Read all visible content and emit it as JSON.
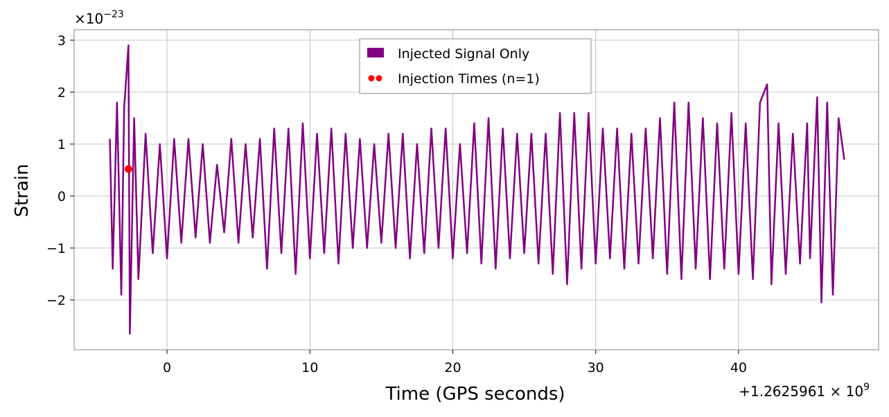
{
  "chart_data": {
    "type": "line",
    "x_label": "Time (GPS seconds)",
    "y_label": "Strain",
    "x_offset": {
      "base": "+1.2625961 × 10",
      "exponent": "9"
    },
    "y_offset": {
      "base": "×10",
      "exponent": "−23"
    },
    "xlim": [
      -6.5,
      49.8
    ],
    "ylim": [
      -2.96,
      3.2
    ],
    "xticks": [
      0,
      10,
      20,
      30,
      40
    ],
    "yticks": [
      {
        "value": -2,
        "label": "−2"
      },
      {
        "value": -1,
        "label": "−1"
      },
      0,
      1,
      2,
      3
    ],
    "grid": true,
    "legend": "upper center",
    "series": [
      {
        "name": "Injected Signal Only",
        "type": "line",
        "color": "#800080",
        "x": [
          -4.0,
          -3.8,
          -3.5,
          -3.2,
          -3.0,
          -2.7,
          -2.6,
          -2.3,
          -2.0,
          -1.5,
          -1.0,
          -0.5,
          0.0,
          0.5,
          1.0,
          1.5,
          2.0,
          2.5,
          3.0,
          3.5,
          4.0,
          4.5,
          5.0,
          5.5,
          6.0,
          6.5,
          7.0,
          7.5,
          8.0,
          8.5,
          9.0,
          9.5,
          10.0,
          10.5,
          11.0,
          11.5,
          12.0,
          12.5,
          13.0,
          13.5,
          14.0,
          14.5,
          15.0,
          15.5,
          16.0,
          16.5,
          17.0,
          17.5,
          18.0,
          18.5,
          19.0,
          19.5,
          20.0,
          20.5,
          21.0,
          21.5,
          22.0,
          22.5,
          23.0,
          23.5,
          24.0,
          24.5,
          25.0,
          25.5,
          26.0,
          26.5,
          27.0,
          27.5,
          28.0,
          28.5,
          29.0,
          29.5,
          30.0,
          30.5,
          31.0,
          31.5,
          32.0,
          32.5,
          33.0,
          33.5,
          34.0,
          34.5,
          35.0,
          35.5,
          36.0,
          36.5,
          37.0,
          37.5,
          38.0,
          38.5,
          39.0,
          39.5,
          40.0,
          40.5,
          41.0,
          41.5,
          42.0,
          42.3,
          42.8,
          43.3,
          43.8,
          44.3,
          44.8,
          45.0,
          45.5,
          45.8,
          46.2,
          46.6,
          47.0,
          47.4
        ],
        "values": [
          1.1,
          -1.4,
          1.8,
          -1.9,
          1.7,
          2.9,
          -2.65,
          1.5,
          -1.6,
          1.2,
          -1.1,
          1.0,
          -1.2,
          1.1,
          -0.9,
          1.1,
          -0.8,
          1.0,
          -0.9,
          0.6,
          -0.7,
          1.1,
          -0.9,
          1.0,
          -0.8,
          1.1,
          -1.4,
          1.3,
          -1.1,
          1.3,
          -1.5,
          1.4,
          -1.2,
          1.2,
          -1.1,
          1.3,
          -1.3,
          1.2,
          -1.0,
          1.1,
          -1.0,
          1.0,
          -0.9,
          1.2,
          -1.0,
          1.2,
          -1.2,
          1.0,
          -1.1,
          1.3,
          -1.0,
          1.3,
          -1.2,
          1.0,
          -1.1,
          1.4,
          -1.3,
          1.5,
          -1.4,
          1.3,
          -1.2,
          1.2,
          -1.1,
          1.2,
          -1.3,
          1.2,
          -1.5,
          1.6,
          -1.7,
          1.6,
          -1.4,
          1.6,
          -1.3,
          1.3,
          -1.2,
          1.3,
          -1.4,
          1.2,
          -1.3,
          1.3,
          -1.2,
          1.5,
          -1.5,
          1.8,
          -1.6,
          1.8,
          -1.4,
          1.5,
          -1.6,
          1.4,
          -1.4,
          1.6,
          -1.5,
          1.4,
          -1.6,
          1.8,
          2.15,
          -1.7,
          1.4,
          -1.5,
          1.2,
          -1.3,
          1.4,
          -1.2,
          1.9,
          -2.05,
          1.8,
          -1.9,
          1.5,
          0.7
        ]
      },
      {
        "name": "Injection Times (n=1)",
        "type": "scatter",
        "color": "#ff0000",
        "x": [
          -2.7
        ],
        "values": [
          0.52
        ]
      }
    ]
  }
}
